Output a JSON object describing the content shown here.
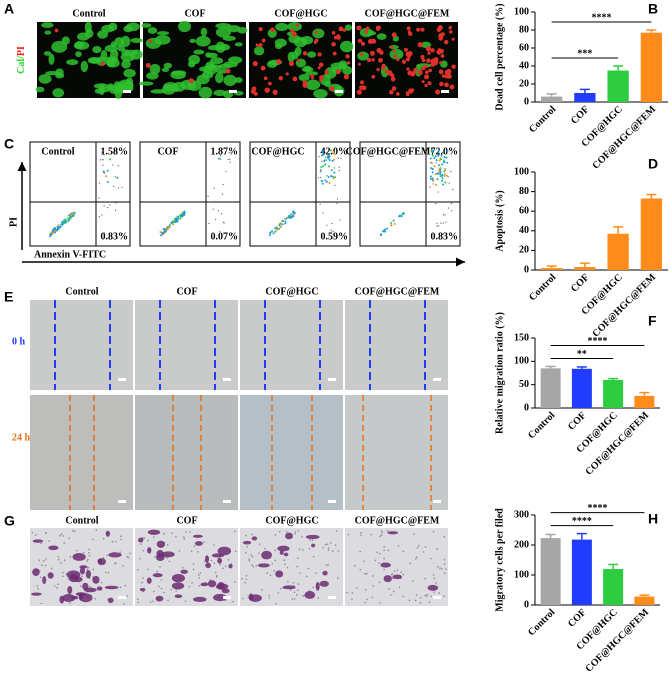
{
  "panel_labels": [
    "A",
    "B",
    "C",
    "D",
    "E",
    "F",
    "G",
    "H"
  ],
  "groups": [
    "Control",
    "COF",
    "COF@HGC",
    "COF@HGC@FEM"
  ],
  "stain_label": {
    "cal": "Cal",
    "sep": "/",
    "pi": "PI"
  },
  "flow": {
    "y_label": "PI",
    "x_label": "Annexin V-FITC",
    "panels": [
      {
        "upper_right": "1.58%",
        "lower_right": "0.83%"
      },
      {
        "upper_right": "1.87%",
        "lower_right": "0.07%"
      },
      {
        "upper_right": "42.0%",
        "lower_right": "0.59%"
      },
      {
        "upper_right": "72.0%",
        "lower_right": "0.83%"
      }
    ]
  },
  "wound_times": [
    "0 h",
    "24 h"
  ],
  "chart_data": [
    {
      "type": "bar",
      "y_label": "Dead cell percentage (%)",
      "categories": [
        "Control",
        "COF",
        "COF@HGC",
        "COF@HGC@FEM"
      ],
      "values": [
        6,
        10,
        35,
        77
      ],
      "error": [
        3,
        4,
        5,
        3
      ],
      "colors": [
        "#a6a6a6",
        "#1f3cff",
        "#2ecc40",
        "#ff8c1a"
      ],
      "ylim": [
        0,
        100
      ],
      "yticks": [
        0,
        20,
        40,
        60,
        80,
        100
      ],
      "annotations": [
        {
          "text": "***",
          "from": "Control",
          "to": "COF@HGC"
        },
        {
          "text": "****",
          "from": "Control",
          "to": "COF@HGC@FEM"
        }
      ]
    },
    {
      "type": "bar",
      "y_label": "Apoptosis (%)",
      "categories": [
        "Control",
        "COF",
        "COF@HGC",
        "COF@HGC@FEM"
      ],
      "values": [
        2,
        3,
        37,
        73
      ],
      "error": [
        2,
        4,
        7,
        4
      ],
      "colors": [
        "#ff8c1a",
        "#ff8c1a",
        "#ff8c1a",
        "#ff8c1a"
      ],
      "ylim": [
        0,
        100
      ],
      "yticks": [
        0,
        20,
        40,
        60,
        80,
        100
      ],
      "annotations": []
    },
    {
      "type": "bar",
      "y_label": "Relative migration ratio (%)",
      "categories": [
        "Control",
        "COF",
        "COF@HGC",
        "COF@HGC@FEM"
      ],
      "values": [
        85,
        84,
        60,
        26
      ],
      "error": [
        4,
        4,
        3,
        7
      ],
      "colors": [
        "#a6a6a6",
        "#1f3cff",
        "#2ecc40",
        "#ff8c1a"
      ],
      "ylim": [
        0,
        150
      ],
      "yticks": [
        0,
        50,
        100,
        150
      ],
      "annotations": [
        {
          "text": "**",
          "from": "Control",
          "to": "COF@HGC"
        },
        {
          "text": "****",
          "from": "Control",
          "to": "COF@HGC@FEM"
        }
      ]
    },
    {
      "type": "bar",
      "y_label": "Migratory cells per filed",
      "categories": [
        "Control",
        "COF",
        "COF@HGC",
        "COF@HGC@FEM"
      ],
      "values": [
        223,
        218,
        120,
        28
      ],
      "error": [
        12,
        20,
        15,
        5
      ],
      "colors": [
        "#a6a6a6",
        "#1f3cff",
        "#2ecc40",
        "#ff8c1a"
      ],
      "ylim": [
        0,
        300
      ],
      "yticks": [
        0,
        100,
        200,
        300
      ],
      "annotations": [
        {
          "text": "****",
          "from": "Control",
          "to": "COF@HGC"
        },
        {
          "text": "****",
          "from": "Control",
          "to": "COF@HGC@FEM"
        }
      ]
    }
  ]
}
